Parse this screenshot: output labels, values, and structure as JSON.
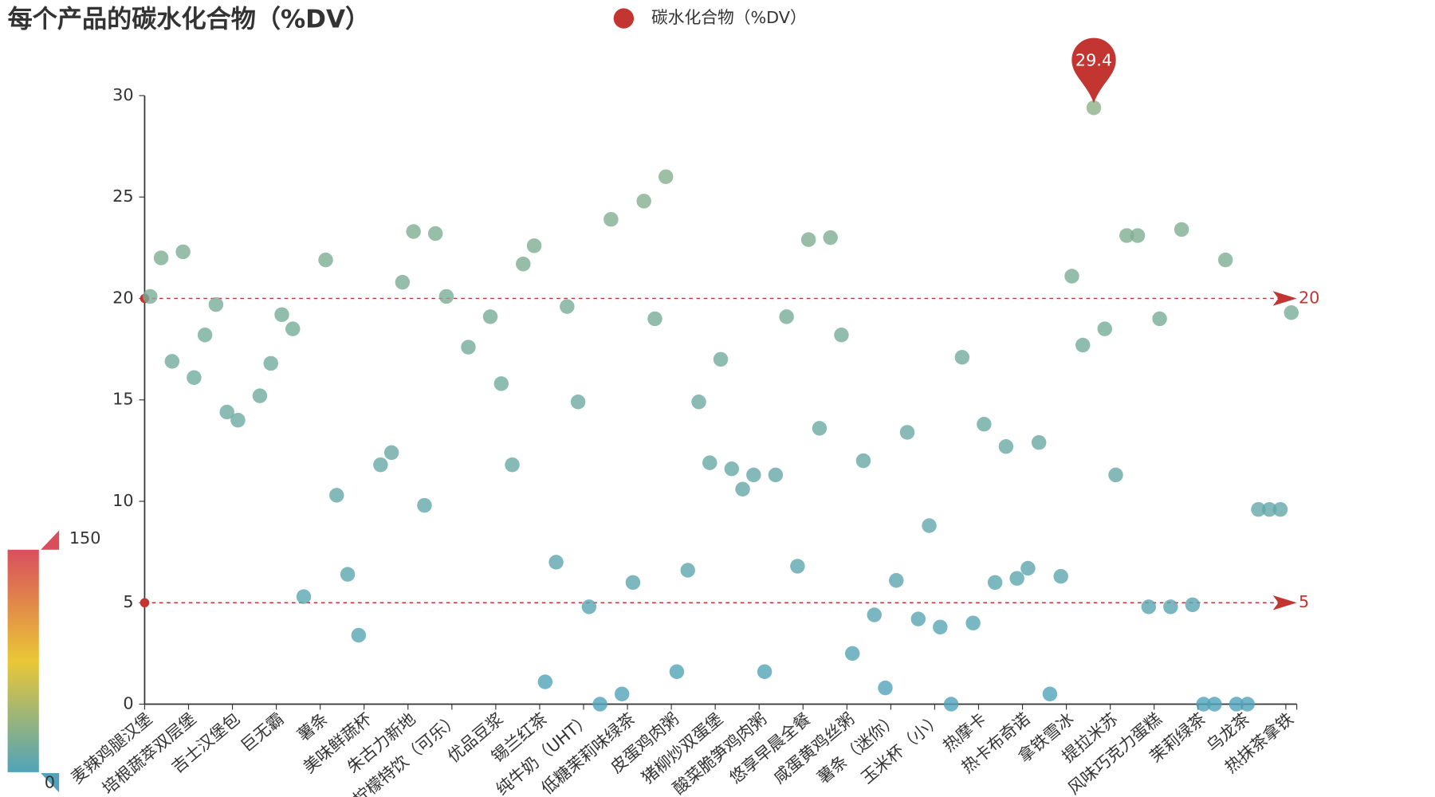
{
  "chart_data": {
    "type": "scatter",
    "title": "每个产品的碳水化合物（%DV）",
    "categories": [
      "麦辣鸡腿汉堡",
      null,
      null,
      null,
      "培根蔬萃双层堡",
      null,
      null,
      null,
      "吉士汉堡包",
      null,
      null,
      null,
      "巨无霸",
      null,
      null,
      null,
      "薯条",
      null,
      null,
      null,
      "美味鲜蔬杯",
      null,
      null,
      null,
      "朱古力新地",
      null,
      null,
      null,
      "柠檬特饮（可乐）",
      null,
      null,
      null,
      "优品豆浆",
      null,
      null,
      null,
      "锡兰红茶",
      null,
      null,
      null,
      "纯牛奶（UHT）",
      null,
      null,
      null,
      "低糖茉莉味绿茶",
      null,
      null,
      null,
      "皮蛋鸡肉粥",
      null,
      null,
      null,
      "猪柳炒双蛋堡",
      null,
      null,
      null,
      "酸菜脆笋鸡肉粥",
      null,
      null,
      null,
      "悠享早晨全餐",
      null,
      null,
      null,
      "咸蛋黄鸡丝粥",
      null,
      null,
      null,
      "薯条（迷你）",
      null,
      null,
      null,
      "玉米杯（小）",
      null,
      null,
      null,
      "热摩卡",
      null,
      null,
      null,
      "热卡布奇诺",
      null,
      null,
      null,
      "拿铁雪冰",
      null,
      null,
      null,
      "提拉米苏",
      null,
      null,
      null,
      "风味巧克力蛋糕",
      null,
      null,
      null,
      "茉莉绿茶",
      null,
      null,
      null,
      "乌龙茶",
      null,
      null,
      null,
      "热抹茶拿铁"
    ],
    "series": [
      {
        "name": "碳水化合物（%DV）",
        "color": "#c23531",
        "values": [
          20.1,
          22,
          16.9,
          22.3,
          16.1,
          18.2,
          19.7,
          14.4,
          14,
          null,
          15.2,
          16.8,
          19.2,
          18.5,
          5.3,
          null,
          21.9,
          10.3,
          6.4,
          3.4,
          null,
          11.8,
          12.4,
          20.8,
          23.3,
          9.8,
          23.2,
          20.1,
          null,
          17.6,
          null,
          19.1,
          15.8,
          11.8,
          21.7,
          22.6,
          1.1,
          7,
          19.6,
          14.9,
          4.8,
          0,
          23.9,
          0.5,
          6,
          24.8,
          19,
          26,
          1.6,
          6.6,
          14.9,
          11.9,
          17,
          11.6,
          10.6,
          11.3,
          1.6,
          11.3,
          19.1,
          6.8,
          22.9,
          13.6,
          23,
          18.2,
          2.5,
          12,
          4.4,
          0.8,
          6.1,
          13.4,
          4.2,
          8.8,
          3.8,
          0,
          17.1,
          4,
          13.8,
          6,
          12.7,
          6.2,
          6.7,
          12.9,
          0.5,
          6.3,
          21.1,
          17.7,
          29.4,
          18.5,
          11.3,
          23.1,
          23.1,
          4.8,
          19,
          4.8,
          23.4,
          4.9,
          0,
          0,
          21.9,
          0,
          0,
          9.6,
          9.6,
          9.6,
          19.3
        ]
      }
    ],
    "mark_point_index": 86,
    "mark_lines": [
      20,
      5
    ],
    "ylim": [
      0,
      30
    ],
    "yticks": [
      0,
      5,
      10,
      15,
      20,
      25,
      30
    ],
    "visual_map": {
      "min": 0,
      "max": 150,
      "colors": [
        "#50a3ba",
        "#eac736",
        "#d94e5d"
      ]
    }
  }
}
